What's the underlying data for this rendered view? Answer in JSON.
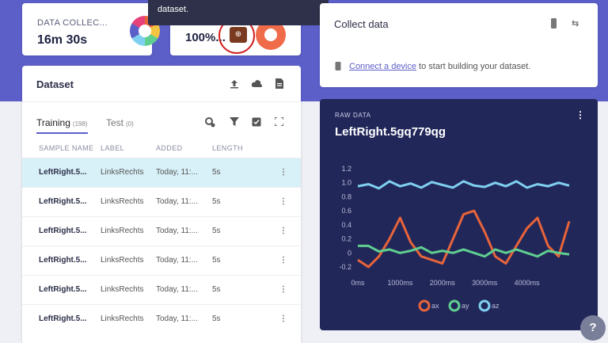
{
  "stats": {
    "collected": {
      "label": "DATA COLLEC...",
      "value": "16m 30s"
    },
    "split": {
      "value": "100%..."
    }
  },
  "tooltip": {
    "text": "dataset."
  },
  "dataset": {
    "title": "Dataset",
    "tabs": [
      {
        "label": "Training",
        "count": "(198)"
      },
      {
        "label": "Test",
        "count": "(0)"
      }
    ],
    "columns": [
      "SAMPLE NAME",
      "LABEL",
      "ADDED",
      "LENGTH"
    ],
    "rows": [
      {
        "name": "LeftRight.5...",
        "label": "LinksRechts",
        "added": "Today, 11:...",
        "length": "5s"
      },
      {
        "name": "LeftRight.5...",
        "label": "LinksRechts",
        "added": "Today, 11:...",
        "length": "5s"
      },
      {
        "name": "LeftRight.5...",
        "label": "LinksRechts",
        "added": "Today, 11:...",
        "length": "5s"
      },
      {
        "name": "LeftRight.5...",
        "label": "LinksRechts",
        "added": "Today, 11:...",
        "length": "5s"
      },
      {
        "name": "LeftRight.5...",
        "label": "LinksRechts",
        "added": "Today, 11:...",
        "length": "5s"
      },
      {
        "name": "LeftRight.5...",
        "label": "LinksRechts",
        "added": "Today, 11:...",
        "length": "5s"
      }
    ],
    "row_menu": "⋮"
  },
  "collect": {
    "title": "Collect data",
    "link": "Connect a device",
    "rest": " to start building your dataset."
  },
  "raw": {
    "label": "RAW DATA",
    "title": "LeftRight.5gq779qg",
    "menu": "⋮"
  },
  "help": {
    "label": "?"
  },
  "chart_data": {
    "type": "line",
    "x": [
      0,
      250,
      500,
      750,
      1000,
      1250,
      1500,
      1750,
      2000,
      2250,
      2500,
      2750,
      3000,
      3250,
      3500,
      3750,
      4000,
      4250,
      4500,
      4750,
      5000
    ],
    "series": [
      {
        "name": "ax",
        "color": "#e8643a",
        "values": [
          -0.1,
          -0.2,
          -0.05,
          0.2,
          0.5,
          0.15,
          -0.05,
          -0.1,
          -0.15,
          0.2,
          0.55,
          0.6,
          0.3,
          -0.05,
          -0.15,
          0.1,
          0.35,
          0.5,
          0.1,
          -0.05,
          0.45
        ]
      },
      {
        "name": "ay",
        "color": "#5fcf8f",
        "values": [
          0.1,
          0.1,
          0.02,
          0.05,
          0.0,
          0.03,
          0.08,
          0.0,
          0.03,
          0.0,
          0.05,
          0.0,
          -0.05,
          0.05,
          0.0,
          0.05,
          0.0,
          -0.05,
          0.03,
          0.0,
          -0.02
        ]
      },
      {
        "name": "az",
        "color": "#7fd0f0",
        "values": [
          0.95,
          0.98,
          0.92,
          1.02,
          0.95,
          0.99,
          0.93,
          1.01,
          0.97,
          0.93,
          1.02,
          0.96,
          0.94,
          1.0,
          0.95,
          1.02,
          0.93,
          0.98,
          0.95,
          1.0,
          0.96
        ]
      }
    ],
    "ylim": [
      -0.2,
      1.2
    ],
    "yticks": [
      "1.2",
      "1.0",
      "0.8",
      "0.6",
      "0.4",
      "0.2",
      "0",
      "-0.2"
    ],
    "xticks": [
      "0ms",
      "1000ms",
      "2000ms",
      "3000ms",
      "4000ms"
    ],
    "legend": [
      "ax",
      "ay",
      "az"
    ]
  }
}
